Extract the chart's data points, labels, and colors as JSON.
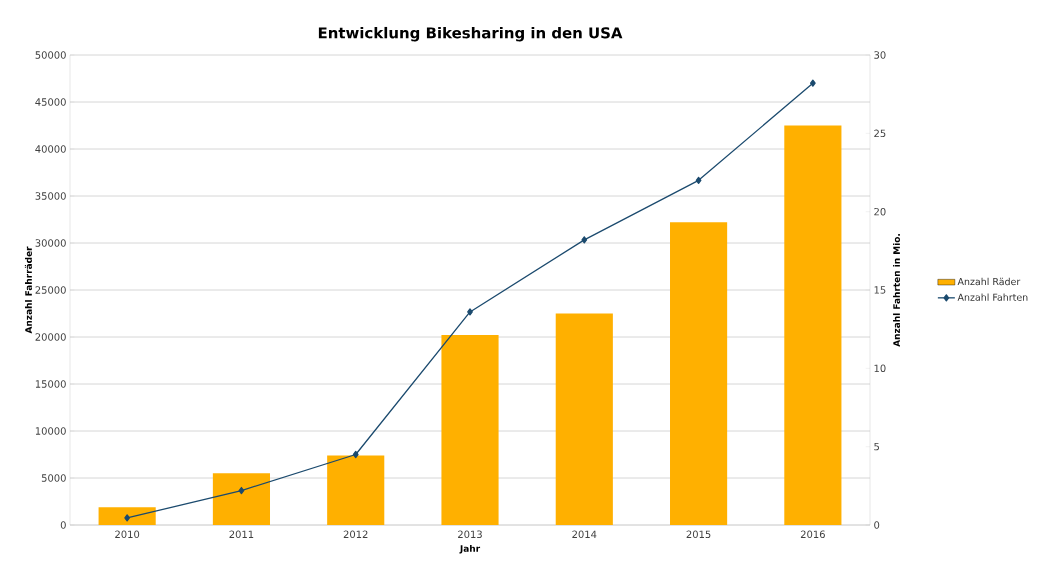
{
  "chart_data": {
    "type": "bar",
    "title": "Entwicklung Bikesharing in den USA",
    "xlabel": "Jahr",
    "ylabel": "Anzahl Fahrräder",
    "y2label": "Anzahl Fahrten in Mio.",
    "categories": [
      "2010",
      "2011",
      "2012",
      "2013",
      "2014",
      "2015",
      "2016"
    ],
    "series": [
      {
        "name": "Anzahl Räder",
        "color": "#ffb000",
        "values": [
          1900,
          5500,
          7400,
          20200,
          22500,
          32200,
          42500
        ]
      },
      {
        "name": "Anzahl Fahrten",
        "type": "line",
        "axis": "y2",
        "color": "#1b4a6e",
        "marker": "diamond",
        "values": [
          0.45,
          2.2,
          4.5,
          13.6,
          18.2,
          22.0,
          28.2
        ]
      }
    ],
    "ylim": [
      0,
      50000
    ],
    "yticks": [
      0,
      5000,
      10000,
      15000,
      20000,
      25000,
      30000,
      35000,
      40000,
      45000,
      50000
    ],
    "y2lim": [
      0,
      30
    ],
    "y2ticks": [
      0,
      5,
      10,
      15,
      20,
      25,
      30
    ],
    "grid": "y",
    "legend": "right"
  }
}
